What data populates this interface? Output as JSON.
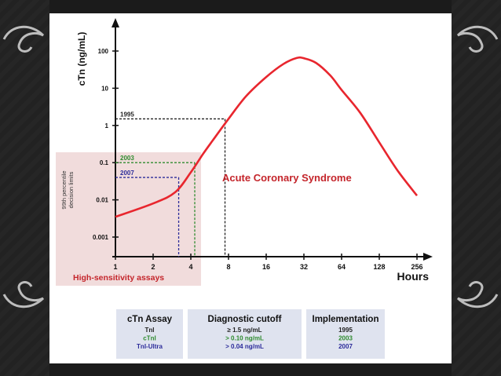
{
  "chart_data": {
    "type": "line",
    "title": "",
    "xlabel": "Hours",
    "ylabel": "cTn (ng/mL)",
    "x_scale": "log2",
    "y_scale": "log10",
    "x_ticks": [
      "1",
      "2",
      "4",
      "8",
      "16",
      "32",
      "64",
      "128",
      "256"
    ],
    "y_ticks": [
      "0.001",
      "0.01",
      "0.1",
      "1",
      "10",
      "100"
    ],
    "xlim": [
      1,
      256
    ],
    "ylim": [
      0.0005,
      300
    ],
    "series": [
      {
        "name": "Acute Coronary Syndrome",
        "x": [
          1,
          2,
          3,
          4,
          5,
          6,
          8,
          11,
          16,
          22,
          28,
          32,
          40,
          52,
          64,
          90,
          128,
          180,
          256
        ],
        "y": [
          0.0035,
          0.008,
          0.016,
          0.055,
          0.17,
          0.4,
          1.5,
          6,
          20,
          45,
          65,
          64,
          48,
          22,
          9,
          2.2,
          0.35,
          0.06,
          0.013
        ]
      }
    ],
    "cutoffs": [
      {
        "year": "1995",
        "y": 1.5,
        "x": 7.5,
        "color": "#222222"
      },
      {
        "year": "2003",
        "y": 0.1,
        "x": 4.3,
        "color": "#2e8b2e"
      },
      {
        "year": "2007",
        "y": 0.04,
        "x": 3.2,
        "color": "#2c2c9a"
      }
    ],
    "percentile_label_line1": "99th percentile",
    "percentile_label_line2": "decision limits",
    "shaded_region_label": "High-sensitivity assays",
    "grid": false,
    "legend": "none"
  },
  "table": {
    "headers": [
      "cTn Assay",
      "Diagnostic cutoff",
      "Implementation"
    ],
    "rows": [
      {
        "assay": "TnI",
        "cutoff": "≥ 1.5 ng/mL",
        "year": "1995",
        "color": "#222222"
      },
      {
        "assay": "cTnI",
        "cutoff": "> 0.10 ng/mL",
        "year": "2003",
        "color": "#2e8b2e"
      },
      {
        "assay": "TnI-Ultra",
        "cutoff": "> 0.04 ng/mL",
        "year": "2007",
        "color": "#2c2c9a"
      }
    ]
  },
  "colors": {
    "curve": "#e8262e",
    "shade": "#f1dcdc",
    "label_red": "#c4252b",
    "table_bg": "#dfe3ef"
  }
}
